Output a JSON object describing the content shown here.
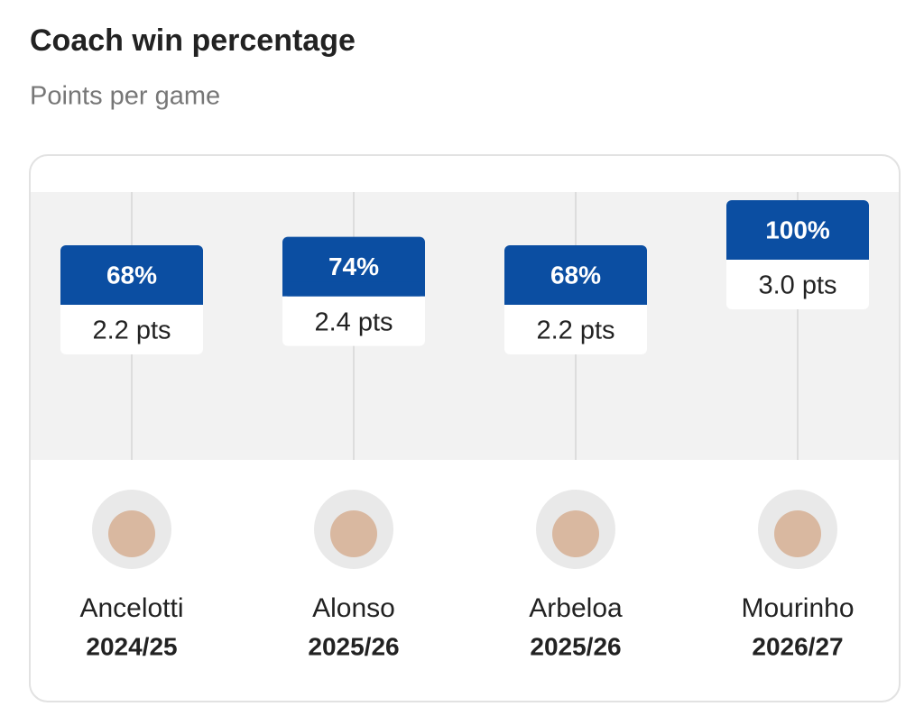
{
  "chart_data": {
    "type": "label",
    "title": "Coach win percentage",
    "subtitle": "Points per game",
    "categories": [
      "Ancelotti",
      "Alonso",
      "Arbeloa",
      "Mourinho"
    ],
    "seasons": [
      "2024/25",
      "2025/26",
      "2025/26",
      "2026/27"
    ],
    "values": [
      68,
      74,
      68,
      100
    ],
    "value_labels": [
      "68%",
      "74%",
      "68%",
      "100%"
    ],
    "points": {
      "values": [
        2.2,
        2.4,
        2.2,
        3.0
      ],
      "value_labels": [
        "2.2 pts",
        "2.4 pts",
        "2.2 pts",
        "3.0 pts"
      ]
    },
    "ylim": [
      0,
      100
    ],
    "color": "#0b4ea2"
  }
}
